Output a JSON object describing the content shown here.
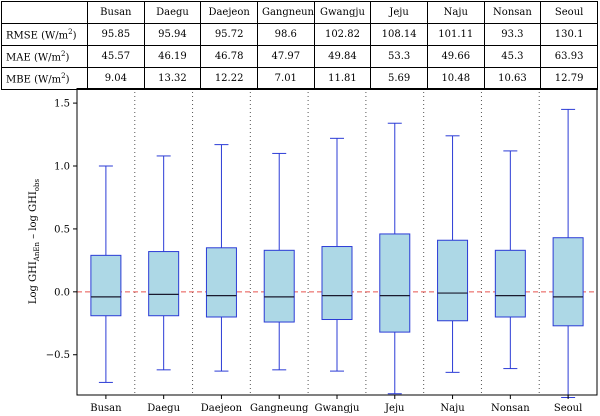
{
  "table": {
    "columns": [
      "Busan",
      "Daegu",
      "Daejeon",
      "Gangneung",
      "Gwangju",
      "Jeju",
      "Naju",
      "Nonsan",
      "Seoul"
    ],
    "rows": [
      {
        "label": "RMSE (W/m",
        "sup": "2",
        "close": ")",
        "values": [
          "95.85",
          "95.94",
          "95.72",
          "98.6",
          "102.82",
          "108.14",
          "101.11",
          "93.3",
          "130.1"
        ]
      },
      {
        "label": "MAE (W/m",
        "sup": "2",
        "close": ")",
        "values": [
          "45.57",
          "46.19",
          "46.78",
          "47.97",
          "49.84",
          "53.3",
          "49.66",
          "45.3",
          "63.93"
        ]
      },
      {
        "label": "MBE (W/m",
        "sup": "2",
        "close": ")",
        "values": [
          "9.04",
          "13.32",
          "12.22",
          "7.01",
          "11.81",
          "5.69",
          "10.48",
          "10.63",
          "12.79"
        ]
      }
    ]
  },
  "chart_data": {
    "type": "boxplot",
    "categories": [
      "Busan",
      "Daegu",
      "Daejeon",
      "Gangneung",
      "Gwangju",
      "Jeju",
      "Naju",
      "Nonsan",
      "Seoul"
    ],
    "ylabel": {
      "main": "Log GHI",
      "sub1": "AnEn",
      "mid": " – log GHI",
      "sub2": "obs"
    },
    "ylim": [
      -0.82,
      1.62
    ],
    "yticks": [
      -0.5,
      0.0,
      0.5,
      1.0,
      1.5
    ],
    "ytick_labels": [
      "−0.5",
      "0.0",
      "0.5",
      "1.0",
      "1.5"
    ],
    "reference_line": 0.0,
    "boxes": [
      {
        "min": -0.72,
        "q1": -0.19,
        "median": -0.04,
        "q3": 0.29,
        "max": 1.0
      },
      {
        "min": -0.62,
        "q1": -0.19,
        "median": -0.02,
        "q3": 0.32,
        "max": 1.08
      },
      {
        "min": -0.63,
        "q1": -0.2,
        "median": -0.03,
        "q3": 0.35,
        "max": 1.17
      },
      {
        "min": -0.62,
        "q1": -0.24,
        "median": -0.04,
        "q3": 0.33,
        "max": 1.1
      },
      {
        "min": -0.63,
        "q1": -0.22,
        "median": -0.03,
        "q3": 0.36,
        "max": 1.22
      },
      {
        "min": -0.81,
        "q1": -0.32,
        "median": -0.03,
        "q3": 0.46,
        "max": 1.34
      },
      {
        "min": -0.64,
        "q1": -0.23,
        "median": -0.01,
        "q3": 0.41,
        "max": 1.24
      },
      {
        "min": -0.61,
        "q1": -0.2,
        "median": -0.03,
        "q3": 0.33,
        "max": 1.12
      },
      {
        "min": -0.84,
        "q1": -0.27,
        "median": -0.04,
        "q3": 0.43,
        "max": 1.45
      }
    ],
    "colors": {
      "box_fill": "#add8e6",
      "box_edge": "#2b3bd6",
      "median": "#1a1a2e",
      "reference": "#e8544f",
      "separator": "#555555"
    },
    "grid": false,
    "legend": "none"
  }
}
